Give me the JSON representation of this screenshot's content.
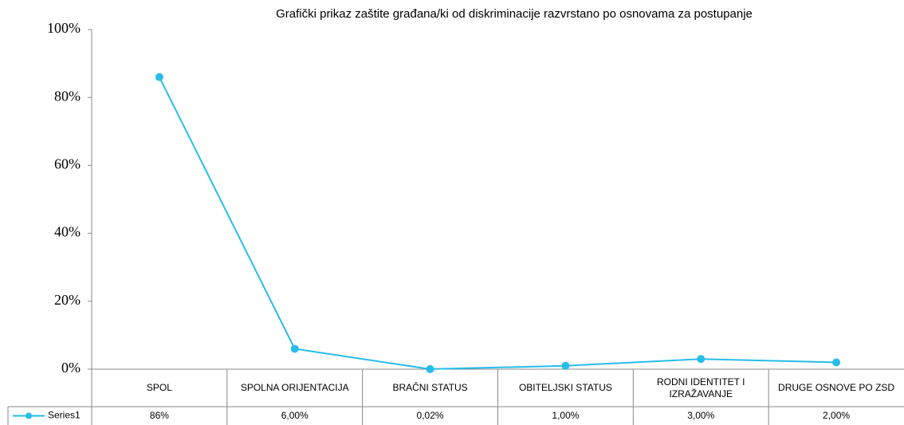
{
  "chart_data": {
    "type": "line",
    "title": "Grafički prikaz zaštite građana/ki od diskriminacije razvrstano po osnovama za postupanje",
    "categories": [
      "SPOL",
      "SPOLNA ORIJENTACIJA",
      "BRAČNI STATUS",
      "OBITELJSKI STATUS",
      "RODNI IDENTITET I IZRAŽAVANJE",
      "DRUGE OSNOVE PO ZSD"
    ],
    "series": [
      {
        "name": "Series1",
        "color": "#26bdea",
        "values": [
          86,
          6,
          0.02,
          1,
          3,
          2
        ],
        "value_labels": [
          "86%",
          "6,00%",
          "0,02%",
          "1,00%",
          "3,00%",
          "2,00%"
        ]
      }
    ],
    "ylim": [
      0,
      100
    ],
    "yticks": [
      {
        "value": 0,
        "label": "0%"
      },
      {
        "value": 20,
        "label": "20%"
      },
      {
        "value": 40,
        "label": "40%"
      },
      {
        "value": 60,
        "label": "60%"
      },
      {
        "value": 80,
        "label": "80%"
      },
      {
        "value": 100,
        "label": "100%"
      }
    ],
    "grid": false
  }
}
